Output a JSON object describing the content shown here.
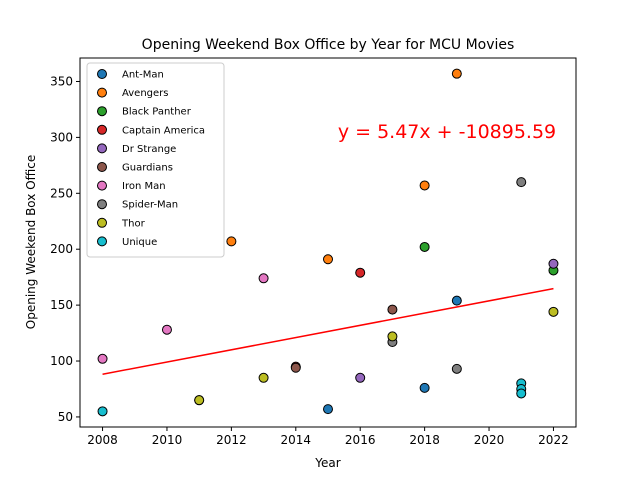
{
  "chart_data": {
    "type": "scatter",
    "title": "Opening Weekend Box Office by Year for MCU Movies",
    "xlabel": "Year",
    "ylabel": "Opening Weekend Box Office",
    "xlim": [
      2007.3,
      2022.7
    ],
    "ylim": [
      41,
      371
    ],
    "x_ticks": [
      2008,
      2010,
      2012,
      2014,
      2016,
      2018,
      2020,
      2022
    ],
    "y_ticks": [
      50,
      100,
      150,
      200,
      250,
      300,
      350
    ],
    "grid": false,
    "legend_position": "top-left",
    "series": [
      {
        "name": "Ant-Man",
        "color": "#1f77b4",
        "points": [
          [
            2015,
            57
          ],
          [
            2018,
            76
          ],
          [
            2019,
            154
          ]
        ]
      },
      {
        "name": "Avengers",
        "color": "#ff7f0e",
        "points": [
          [
            2012,
            207
          ],
          [
            2015,
            191
          ],
          [
            2018,
            257
          ],
          [
            2019,
            357
          ]
        ]
      },
      {
        "name": "Black Panther",
        "color": "#2ca02c",
        "points": [
          [
            2018,
            202
          ],
          [
            2022,
            181
          ]
        ]
      },
      {
        "name": "Captain America",
        "color": "#d62728",
        "points": [
          [
            2011,
            65
          ],
          [
            2014,
            95
          ],
          [
            2016,
            179
          ]
        ]
      },
      {
        "name": "Dr Strange",
        "color": "#9467bd",
        "points": [
          [
            2016,
            85
          ],
          [
            2022,
            187
          ]
        ]
      },
      {
        "name": "Guardians",
        "color": "#8c564b",
        "points": [
          [
            2014,
            94
          ],
          [
            2017,
            146
          ]
        ]
      },
      {
        "name": "Iron Man",
        "color": "#e377c2",
        "points": [
          [
            2008,
            102
          ],
          [
            2010,
            128
          ],
          [
            2013,
            174
          ]
        ]
      },
      {
        "name": "Spider-Man",
        "color": "#7f7f7f",
        "points": [
          [
            2017,
            117
          ],
          [
            2019,
            93
          ],
          [
            2021,
            260
          ]
        ]
      },
      {
        "name": "Thor",
        "color": "#bcbd22",
        "points": [
          [
            2011,
            65
          ],
          [
            2013,
            85
          ],
          [
            2017,
            122
          ],
          [
            2022,
            144
          ]
        ]
      },
      {
        "name": "Unique",
        "color": "#17becf",
        "points": [
          [
            2008,
            55
          ],
          [
            2021,
            80
          ],
          [
            2021,
            75
          ],
          [
            2021,
            71
          ]
        ]
      }
    ],
    "trendline": {
      "slope": 5.47,
      "intercept": -10895.59,
      "x_range": [
        2008,
        2022
      ],
      "color": "#ff0000",
      "label": "y = 5.47x + -10895.59"
    }
  }
}
